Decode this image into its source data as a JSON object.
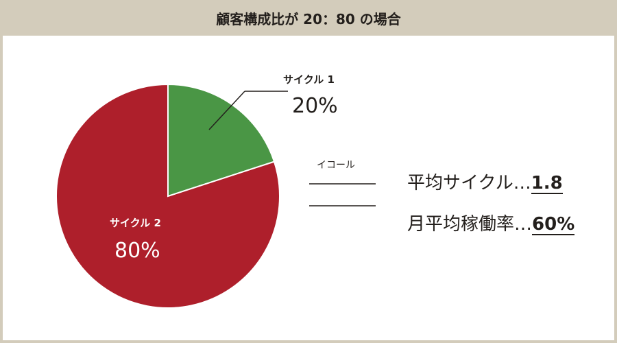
{
  "header": {
    "title": "顧客構成比が 20：80 の場合"
  },
  "chart_data": {
    "type": "pie",
    "title": "顧客構成比が 20：80 の場合",
    "slices": [
      {
        "label": "サイクル 1",
        "value": 20,
        "value_label": "20%",
        "color": "#4a9645"
      },
      {
        "label": "サイクル 2",
        "value": 80,
        "value_label": "80%",
        "color": "#ae1f2b"
      }
    ]
  },
  "summary": {
    "equal_label": "イコール",
    "stats": [
      {
        "label": "平均サイクル…",
        "value": "1.8"
      },
      {
        "label": "月平均稼働率…",
        "value": "60%"
      }
    ]
  },
  "colors": {
    "background": "#d3ccbb",
    "panel": "#ffffff",
    "text": "#231f1c"
  }
}
